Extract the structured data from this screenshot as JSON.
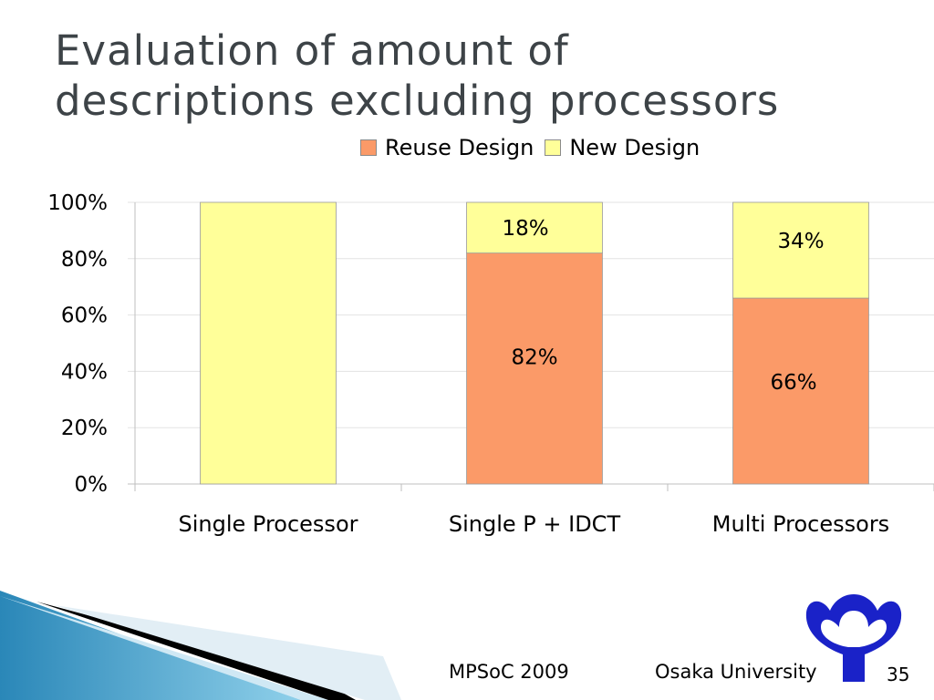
{
  "slide": {
    "title_line1": "Evaluation of amount of",
    "title_line2": "descriptions excluding processors",
    "footer_conference": "MPSoC 2009",
    "footer_org": "Osaka University",
    "page_number": "35"
  },
  "colors": {
    "reuse": "#fb9a68",
    "new": "#ffff99",
    "title": "#3d4347"
  },
  "chart_data": {
    "type": "bar",
    "stacked": true,
    "percent": true,
    "categories": [
      "Single Processor",
      "Single P + IDCT",
      "Multi Processors"
    ],
    "series": [
      {
        "name": "Reuse Design",
        "values": [
          0,
          82,
          66
        ],
        "color": "#fb9a68",
        "labels": [
          "",
          "82%",
          "66%"
        ]
      },
      {
        "name": "New Design",
        "values": [
          100,
          18,
          34
        ],
        "color": "#ffff99",
        "labels": [
          "",
          "18%",
          "34%"
        ]
      }
    ],
    "yticks": [
      "0%",
      "20%",
      "40%",
      "60%",
      "80%",
      "100%"
    ],
    "ylim": [
      0,
      100
    ],
    "grid": true,
    "legend": "top"
  }
}
